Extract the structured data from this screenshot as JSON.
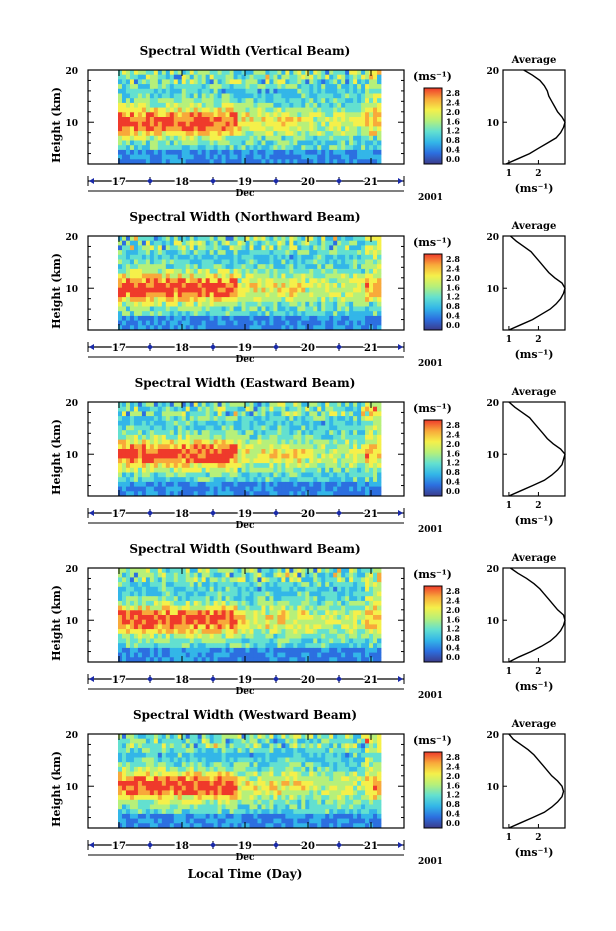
{
  "figure": {
    "xlabel": "Local Time (Day)",
    "month_label": "Dec",
    "year_label": "2001",
    "profile_title": "Average",
    "units_label": "(ms⁻¹)"
  },
  "chart_data": [
    {
      "type": "heatmap",
      "title": "Spectral Width (Vertical Beam)",
      "ylabel": "Height (km)",
      "x_ticks": [
        "17",
        "18",
        "19",
        "20",
        "21"
      ],
      "y_ticks": [
        "10",
        "20"
      ],
      "ylim": [
        2,
        20
      ],
      "colorbar_ticks": [
        "2.8",
        "2.4",
        "2.0",
        "1.6",
        "1.2",
        "0.8",
        "0.4",
        "0.0"
      ],
      "colorscale": [
        "#3b3b8a",
        "#2c6fe0",
        "#33b6e8",
        "#63e0d0",
        "#b6f07a",
        "#f5f04a",
        "#f8a93a",
        "#ef3a2b"
      ],
      "profile": {
        "xlabel": "(ms⁻¹)",
        "x_ticks": [
          "1",
          "2"
        ],
        "xlim": [
          0.8,
          2.9
        ],
        "heights": [
          2,
          3,
          4,
          5,
          6,
          7,
          8,
          9,
          10,
          11,
          12,
          13,
          14,
          15,
          16,
          17,
          18,
          19,
          20
        ],
        "values": [
          0.9,
          1.3,
          1.7,
          2.0,
          2.3,
          2.6,
          2.75,
          2.85,
          2.9,
          2.8,
          2.65,
          2.55,
          2.45,
          2.35,
          2.3,
          2.2,
          2.05,
          1.8,
          1.5
        ]
      }
    },
    {
      "type": "heatmap",
      "title": "Spectral Width (Northward Beam)",
      "ylabel": "Height (km)",
      "x_ticks": [
        "17",
        "18",
        "19",
        "20",
        "21"
      ],
      "y_ticks": [
        "10",
        "20"
      ],
      "ylim": [
        2,
        20
      ],
      "colorbar_ticks": [
        "2.8",
        "2.4",
        "2.0",
        "1.6",
        "1.2",
        "0.8",
        "0.4",
        "0.0"
      ],
      "colorscale": [
        "#3b3b8a",
        "#2c6fe0",
        "#33b6e8",
        "#63e0d0",
        "#b6f07a",
        "#f5f04a",
        "#f8a93a",
        "#ef3a2b"
      ],
      "profile": {
        "xlabel": "(ms⁻¹)",
        "x_ticks": [
          "1",
          "2"
        ],
        "xlim": [
          0.8,
          2.9
        ],
        "heights": [
          2,
          3,
          4,
          5,
          6,
          7,
          8,
          9,
          10,
          11,
          12,
          13,
          14,
          15,
          16,
          17,
          18,
          19,
          20
        ],
        "values": [
          1.0,
          1.4,
          1.8,
          2.1,
          2.4,
          2.6,
          2.75,
          2.85,
          2.9,
          2.8,
          2.55,
          2.35,
          2.2,
          2.05,
          1.9,
          1.75,
          1.5,
          1.25,
          1.05
        ]
      }
    },
    {
      "type": "heatmap",
      "title": "Spectral Width (Eastward Beam)",
      "ylabel": "Height (km)",
      "x_ticks": [
        "17",
        "18",
        "19",
        "20",
        "21"
      ],
      "y_ticks": [
        "10",
        "20"
      ],
      "ylim": [
        2,
        20
      ],
      "colorbar_ticks": [
        "2.8",
        "2.4",
        "2.0",
        "1.6",
        "1.2",
        "0.8",
        "0.4",
        "0.0"
      ],
      "colorscale": [
        "#3b3b8a",
        "#2c6fe0",
        "#33b6e8",
        "#63e0d0",
        "#b6f07a",
        "#f5f04a",
        "#f8a93a",
        "#ef3a2b"
      ],
      "profile": {
        "xlabel": "(ms⁻¹)",
        "x_ticks": [
          "1",
          "2"
        ],
        "xlim": [
          0.8,
          2.9
        ],
        "heights": [
          2,
          3,
          4,
          5,
          6,
          7,
          8,
          9,
          10,
          11,
          12,
          13,
          14,
          15,
          16,
          17,
          18,
          19,
          20
        ],
        "values": [
          1.0,
          1.4,
          1.8,
          2.2,
          2.45,
          2.65,
          2.8,
          2.85,
          2.9,
          2.75,
          2.5,
          2.3,
          2.15,
          2.0,
          1.85,
          1.7,
          1.45,
          1.2,
          1.0
        ]
      }
    },
    {
      "type": "heatmap",
      "title": "Spectral Width (Southward Beam)",
      "ylabel": "Height (km)",
      "x_ticks": [
        "17",
        "18",
        "19",
        "20",
        "21"
      ],
      "y_ticks": [
        "10",
        "20"
      ],
      "ylim": [
        2,
        20
      ],
      "colorbar_ticks": [
        "2.8",
        "2.4",
        "2.0",
        "1.6",
        "1.2",
        "0.8",
        "0.4",
        "0.0"
      ],
      "colorscale": [
        "#3b3b8a",
        "#2c6fe0",
        "#33b6e8",
        "#63e0d0",
        "#b6f07a",
        "#f5f04a",
        "#f8a93a",
        "#ef3a2b"
      ],
      "profile": {
        "xlabel": "(ms⁻¹)",
        "x_ticks": [
          "1",
          "2"
        ],
        "xlim": [
          0.8,
          2.9
        ],
        "heights": [
          2,
          3,
          4,
          5,
          6,
          7,
          8,
          9,
          10,
          11,
          12,
          13,
          14,
          15,
          16,
          17,
          18,
          19,
          20
        ],
        "values": [
          1.0,
          1.35,
          1.75,
          2.1,
          2.4,
          2.6,
          2.75,
          2.85,
          2.9,
          2.85,
          2.65,
          2.5,
          2.35,
          2.2,
          2.05,
          1.85,
          1.6,
          1.3,
          1.05
        ]
      }
    },
    {
      "type": "heatmap",
      "title": "Spectral Width (Westward Beam)",
      "ylabel": "Height (km)",
      "x_ticks": [
        "17",
        "18",
        "19",
        "20",
        "21"
      ],
      "y_ticks": [
        "10",
        "20"
      ],
      "ylim": [
        2,
        20
      ],
      "colorbar_ticks": [
        "2.8",
        "2.4",
        "2.0",
        "1.6",
        "1.2",
        "0.8",
        "0.4",
        "0.0"
      ],
      "colorscale": [
        "#3b3b8a",
        "#2c6fe0",
        "#33b6e8",
        "#63e0d0",
        "#b6f07a",
        "#f5f04a",
        "#f8a93a",
        "#ef3a2b"
      ],
      "profile": {
        "xlabel": "(ms⁻¹)",
        "x_ticks": [
          "1",
          "2"
        ],
        "xlim": [
          0.8,
          2.9
        ],
        "heights": [
          2,
          3,
          4,
          5,
          6,
          7,
          8,
          9,
          10,
          11,
          12,
          13,
          14,
          15,
          16,
          17,
          18,
          19,
          20
        ],
        "values": [
          1.0,
          1.4,
          1.8,
          2.2,
          2.45,
          2.65,
          2.8,
          2.85,
          2.8,
          2.65,
          2.45,
          2.3,
          2.15,
          2.0,
          1.85,
          1.65,
          1.4,
          1.15,
          1.0
        ]
      }
    }
  ]
}
